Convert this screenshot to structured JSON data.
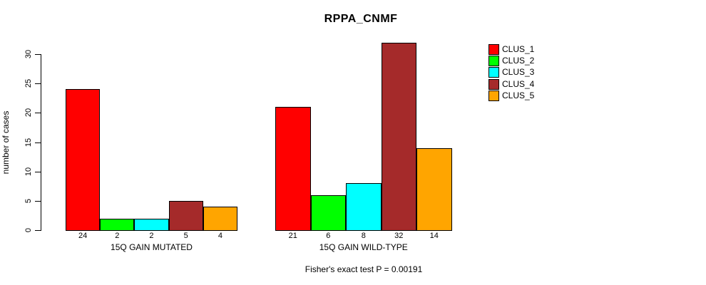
{
  "page": {
    "background": "#ffffff"
  },
  "chart_data": {
    "type": "bar",
    "title": "RPPA_CNMF",
    "xlabel": "",
    "ylabel": "number of cases",
    "ylim": [
      0,
      30
    ],
    "yticks": [
      0,
      5,
      10,
      15,
      20,
      25,
      30
    ],
    "grid": false,
    "legend_position": "right-outside",
    "series": [
      {
        "name": "CLUS_1",
        "color": "#FF0000"
      },
      {
        "name": "CLUS_2",
        "color": "#00FF00"
      },
      {
        "name": "CLUS_3",
        "color": "#00FFFF"
      },
      {
        "name": "CLUS_4",
        "color": "#A52A2A"
      },
      {
        "name": "CLUS_5",
        "color": "#FFA500"
      }
    ],
    "groups": [
      {
        "label": "15Q GAIN MUTATED",
        "values": [
          24,
          2,
          2,
          5,
          4
        ]
      },
      {
        "label": "15Q GAIN WILD-TYPE",
        "values": [
          21,
          6,
          8,
          32,
          14
        ]
      }
    ],
    "bar_value_labels": true,
    "annotation": "Fisher's exact test P = 0.00191"
  }
}
